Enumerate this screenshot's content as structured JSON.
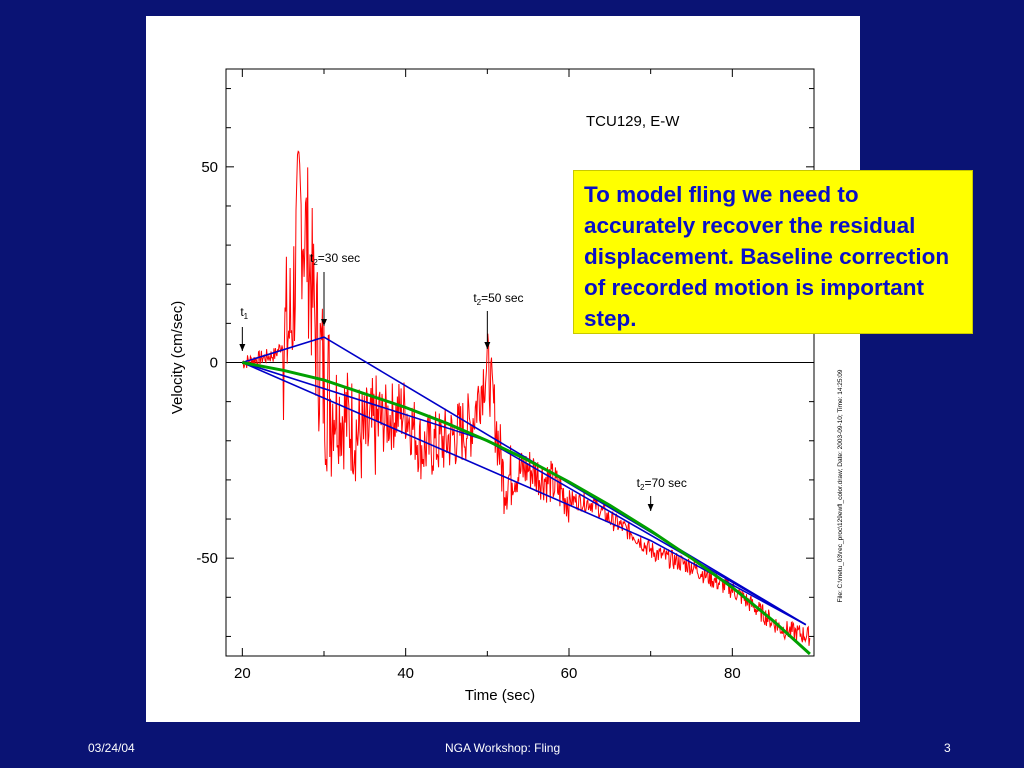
{
  "footer": {
    "date": "03/24/04",
    "title": "NGA Workshop: Fling",
    "page": "3"
  },
  "callout": {
    "text": "To model fling we need to accurately recover the residual displacement.  Baseline correction of recorded motion is important step."
  },
  "colors": {
    "background": "#0a1374",
    "record": "#ff0000",
    "baseline_fits": "#0000c8",
    "quadratic_fit": "#00a000",
    "callout_bg": "#ffff00",
    "callout_text": "#0a10c8"
  },
  "chart_data": {
    "type": "line",
    "title": "TCU129, E-W",
    "xlabel": "Time (sec)",
    "ylabel": "Velocity  (cm/sec)",
    "xlim": [
      18,
      90
    ],
    "ylim": [
      -75,
      75
    ],
    "xticks": [
      20,
      40,
      60,
      80
    ],
    "yticks": [
      -50,
      0,
      50
    ],
    "file_note": "File: C:\\metu_03\\rec_proc\\129ewfl_color.draw; Date: 2003-09-10; Time: 14:25:09",
    "annotations": [
      {
        "label": "t",
        "sub": "1",
        "x": 20
      },
      {
        "label": "t",
        "sub": "2",
        "suffix": "=30 sec",
        "x": 30
      },
      {
        "label": "t",
        "sub": "2",
        "suffix": "=50 sec",
        "x": 50
      },
      {
        "label": "t",
        "sub": "2",
        "suffix": "=70 sec",
        "x": 70
      }
    ],
    "series": [
      {
        "type": "noisy-line",
        "x": [
          20,
          22,
          24,
          25,
          26,
          27,
          28,
          29,
          30,
          31,
          33,
          35,
          37,
          40,
          42,
          45,
          48,
          50,
          52,
          55,
          58,
          60,
          63,
          65,
          68,
          70,
          72,
          75,
          78,
          80,
          83,
          86,
          89.5
        ],
        "values": [
          0,
          1,
          2,
          5,
          10,
          40,
          30,
          8,
          -5,
          -10,
          -15,
          -20,
          -15,
          -12,
          -22,
          -20,
          -16,
          0,
          -30,
          -27,
          -31,
          -35,
          -36,
          -40,
          -44,
          -48,
          -50,
          -52,
          -56,
          -58,
          -63,
          -68,
          -70
        ]
      },
      {
        "type": "line",
        "x": [
          20,
          30,
          89
        ],
        "values": [
          0,
          6.5,
          -67
        ]
      },
      {
        "type": "line",
        "x": [
          20,
          50,
          89
        ],
        "values": [
          0,
          -20,
          -67
        ]
      },
      {
        "type": "line",
        "x": [
          20,
          70,
          89
        ],
        "values": [
          0,
          -45.5,
          -67
        ]
      },
      {
        "type": "curve",
        "x": [
          20,
          25,
          30,
          35,
          40,
          45,
          50,
          55,
          60,
          65,
          70,
          75,
          80,
          85,
          89.5
        ],
        "values": [
          0,
          -2,
          -4.5,
          -8,
          -11.5,
          -15.5,
          -20,
          -25,
          -30.5,
          -36.5,
          -43,
          -50,
          -57.5,
          -66,
          -74.5
        ]
      }
    ]
  }
}
